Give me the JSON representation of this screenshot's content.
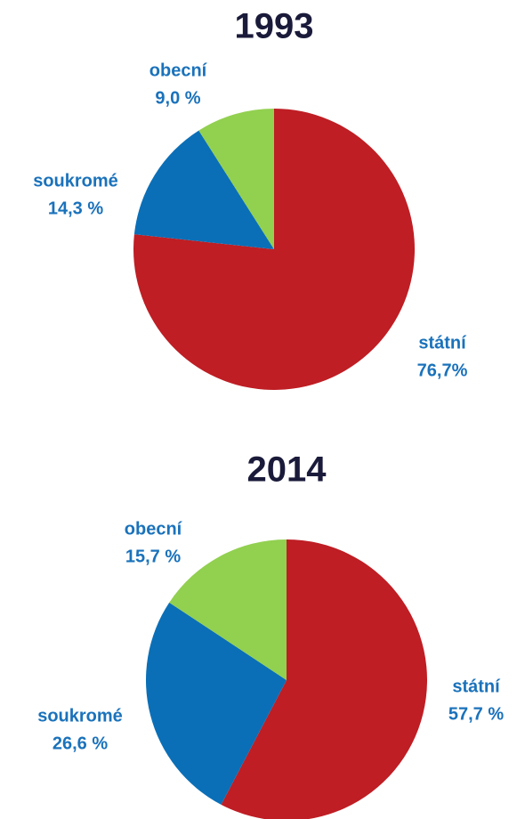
{
  "chart_data": [
    {
      "type": "pie",
      "title": "1993",
      "categories": [
        "státní",
        "soukromé",
        "obecní"
      ],
      "values": [
        76.7,
        14.3,
        9.0
      ],
      "value_labels": [
        "76,7%",
        "14,3 %",
        "9,0 %"
      ],
      "colors": [
        "#be1e24",
        "#0a6fb7",
        "#92d050"
      ]
    },
    {
      "type": "pie",
      "title": "2014",
      "categories": [
        "státní",
        "soukromé",
        "obecní"
      ],
      "values": [
        57.7,
        26.6,
        15.7
      ],
      "value_labels": [
        "57,7 %",
        "26,6 %",
        "15,7 %"
      ],
      "colors": [
        "#be1e24",
        "#0a6fb7",
        "#92d050"
      ]
    }
  ]
}
